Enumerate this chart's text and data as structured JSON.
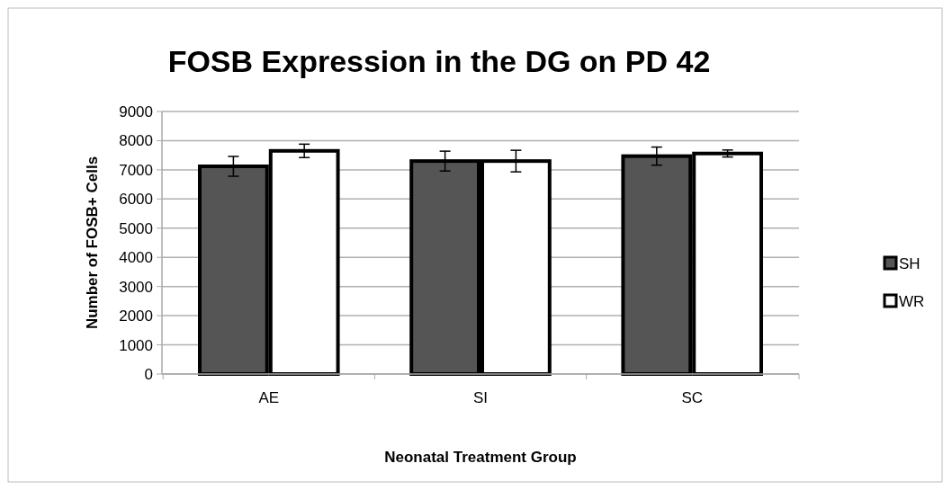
{
  "chart_data": {
    "type": "bar",
    "title": "FOSB Expression in the DG on PD 42",
    "xlabel": "Neonatal Treatment Group",
    "ylabel": "Number of FOSB+ Cells",
    "categories": [
      "AE",
      "SI",
      "SC"
    ],
    "series": [
      {
        "name": "SH",
        "color": "#555555",
        "values": [
          7120,
          7300,
          7470
        ],
        "errors": [
          340,
          340,
          310
        ]
      },
      {
        "name": "WR",
        "color": "#ffffff",
        "values": [
          7650,
          7300,
          7560
        ],
        "errors": [
          230,
          370,
          120
        ]
      }
    ],
    "ylim": [
      0,
      9000
    ],
    "yticks": [
      0,
      1000,
      2000,
      3000,
      4000,
      5000,
      6000,
      7000,
      8000,
      9000
    ],
    "grid": "y",
    "legend": "right"
  }
}
